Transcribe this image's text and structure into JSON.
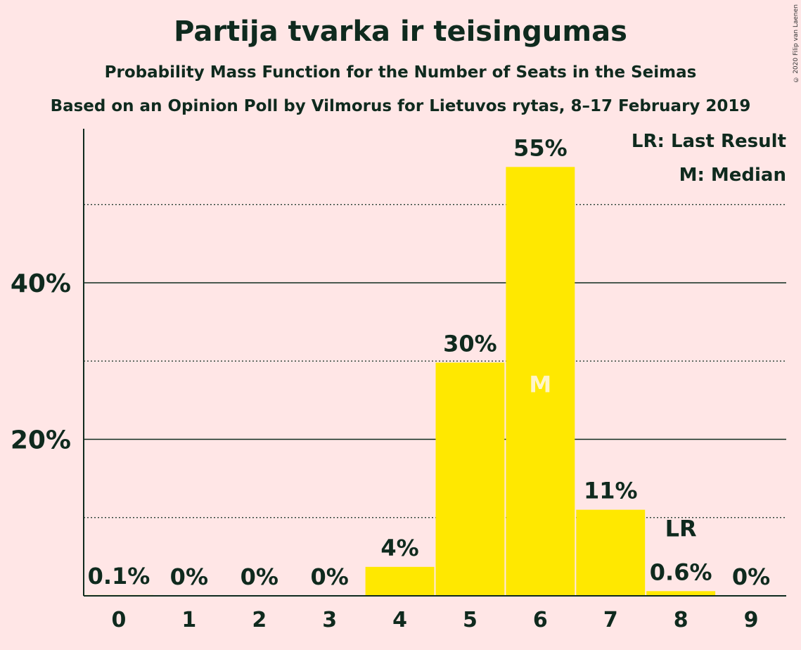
{
  "chart_data": {
    "type": "bar",
    "title": "Partija tvarka ir teisingumas",
    "subtitle": "Probability Mass Function for the Number of Seats in the Seimas",
    "subtitle2": "Based on an Opinion Poll by Vilmorus for Lietuvos rytas, 8–17 February 2019",
    "categories": [
      "0",
      "1",
      "2",
      "3",
      "4",
      "5",
      "6",
      "7",
      "8",
      "9"
    ],
    "values": [
      0.1,
      0,
      0,
      0,
      3.7,
      29.8,
      54.8,
      11.0,
      0.6,
      0
    ],
    "data_labels": [
      "0.1%",
      "0%",
      "0%",
      "0%",
      "4%",
      "30%",
      "55%",
      "11%",
      "0.6%",
      "0%"
    ],
    "ylim": [
      0,
      60
    ],
    "yticks": [
      {
        "value": 20,
        "label": "20%"
      },
      {
        "value": 40,
        "label": "40%"
      }
    ],
    "minor_gridlines": [
      10,
      30,
      50
    ],
    "median_category": "6",
    "median_marker": "M",
    "last_result_category": "8",
    "last_result_marker": "LR",
    "legend": [
      "LR: Last Result",
      "M: Median"
    ],
    "legend_position": "top-right",
    "bar_color": "#FFE800",
    "median_text_color": "#FFF5C8"
  },
  "copyright": "© 2020 Filip van Laenen"
}
